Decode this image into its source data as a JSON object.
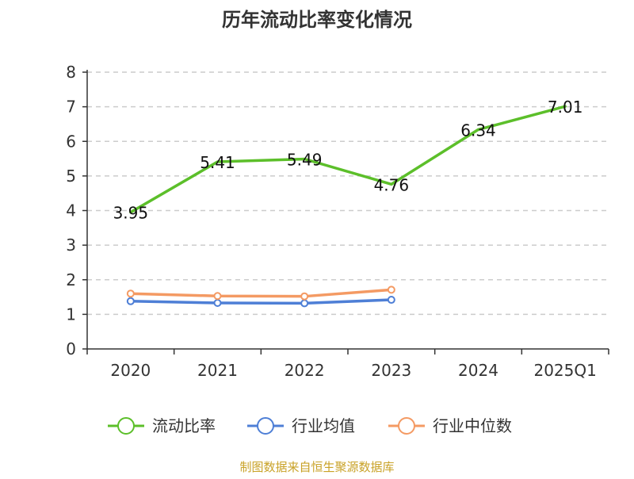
{
  "chart_data": {
    "type": "line",
    "title": "历年流动比率变化情况",
    "categories": [
      "2020",
      "2021",
      "2022",
      "2023",
      "2024",
      "2025Q1"
    ],
    "ylim": [
      0,
      8
    ],
    "yticks": [
      "0",
      "1",
      "2",
      "3",
      "4",
      "5",
      "6",
      "7",
      "8"
    ],
    "grid": true,
    "legend_position": "bottom",
    "series": [
      {
        "name": "流动比率",
        "color": "#5cbf2a",
        "values": [
          3.95,
          5.41,
          5.49,
          4.76,
          6.34,
          7.01
        ],
        "labels": [
          "3.95",
          "5.41",
          "5.49",
          "4.76",
          "6.34",
          "7.01"
        ],
        "show_markers": false
      },
      {
        "name": "行业均值",
        "color": "#4e7fd6",
        "values": [
          1.38,
          1.33,
          1.32,
          1.42,
          null,
          null
        ],
        "show_markers": true
      },
      {
        "name": "行业中位数",
        "color": "#f49a63",
        "values": [
          1.6,
          1.53,
          1.52,
          1.71,
          null,
          null
        ],
        "show_markers": true
      }
    ],
    "source": "制图数据来自恒生聚源数据库"
  }
}
